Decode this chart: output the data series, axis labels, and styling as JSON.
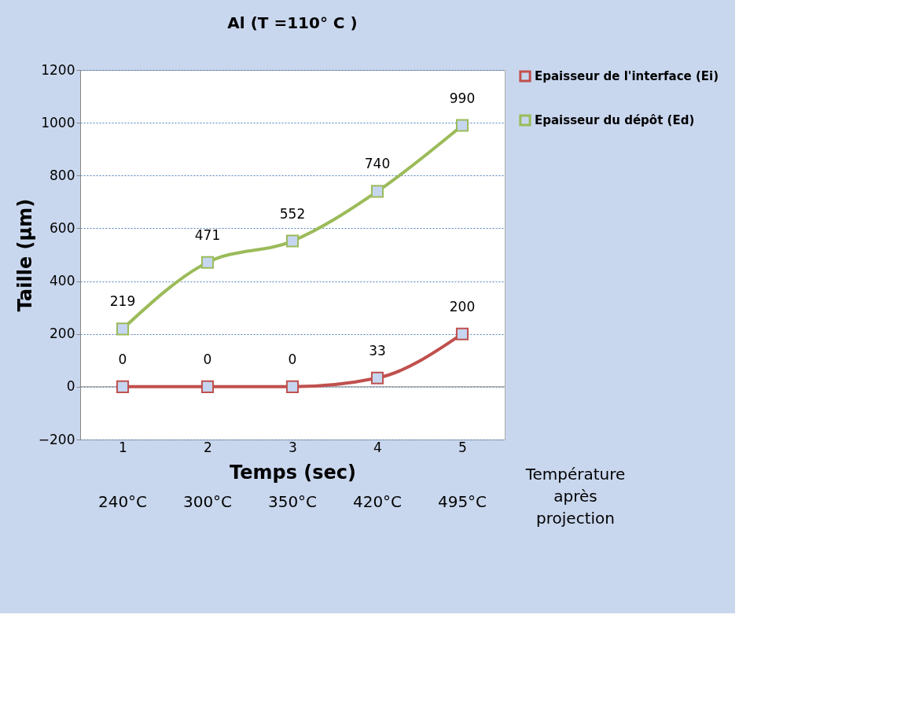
{
  "chart_data": {
    "type": "line",
    "title": "Al (T =110° C )",
    "xlabel": "Temps (sec)",
    "ylabel": "Taille (µm)",
    "categories": [
      "1",
      "2",
      "3",
      "4",
      "5"
    ],
    "series": [
      {
        "name": "Epaisseur de l'interface (Ei)",
        "color": "#c0504d",
        "values": [
          0,
          0,
          0,
          33,
          200
        ]
      },
      {
        "name": "Epaisseur du dépôt (Ed)",
        "color": "#9bbb59",
        "values": [
          219,
          471,
          552,
          740,
          990
        ]
      }
    ],
    "ylim": [
      -200,
      1200
    ],
    "yticks": [
      -200,
      0,
      200,
      400,
      600,
      800,
      1000,
      1200
    ],
    "grid": "y",
    "legend": "right",
    "marker": "square",
    "line_style": "solid",
    "data_labels": true,
    "annotations": [
      "240°C",
      "300°C",
      "350°C",
      "420°C",
      "495°C",
      "Température après projection"
    ]
  }
}
